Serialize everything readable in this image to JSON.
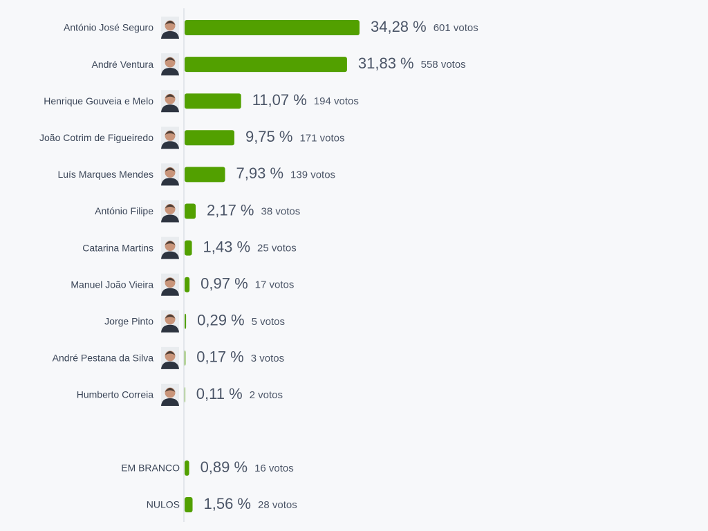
{
  "chart_data": [
    {
      "type": "bar",
      "orientation": "horizontal",
      "color": "#52a000",
      "categories": [
        "António José Seguro",
        "André Ventura",
        "Henrique Gouveia e Melo",
        "João Cotrim de Figueiredo",
        "Luís Marques Mendes",
        "António Filipe",
        "Catarina Martins",
        "Manuel João Vieira",
        "Jorge Pinto",
        "André Pestana da Silva",
        "Humberto Correia"
      ],
      "values": [
        34.28,
        31.83,
        11.07,
        9.75,
        7.93,
        2.17,
        1.43,
        0.97,
        0.29,
        0.17,
        0.11
      ],
      "value_labels": [
        "34,28 %",
        "31,83 %",
        "11,07 %",
        "9,75 %",
        "7,93 %",
        "2,17 %",
        "1,43 %",
        "0,97 %",
        "0,29 %",
        "0,17 %",
        "0,11 %"
      ],
      "vote_labels": [
        "601 votos",
        "558 votos",
        "194 votos",
        "171 votos",
        "139 votos",
        "38 votos",
        "25 votos",
        "17 votos",
        "5 votos",
        "3 votos",
        "2 votos"
      ]
    },
    {
      "type": "bar",
      "orientation": "horizontal",
      "color": "#52a000",
      "categories": [
        "EM BRANCO",
        "NULOS"
      ],
      "values": [
        0.89,
        1.56
      ],
      "value_labels": [
        "0,89 %",
        "1,56 %"
      ],
      "vote_labels": [
        "16 votos",
        "28 votos"
      ]
    }
  ]
}
